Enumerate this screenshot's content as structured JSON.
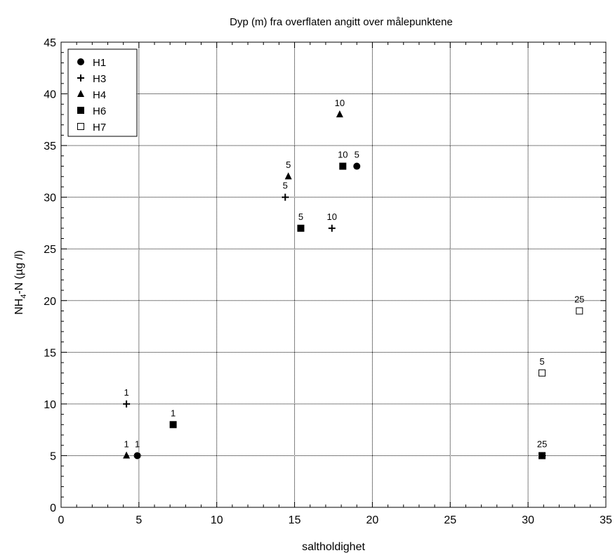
{
  "chart_data": {
    "type": "scatter",
    "title": "Dyp (m) fra overflaten angitt over målepunktene",
    "xlabel": "saltholdighet",
    "ylabel": "NH",
    "ylabel_sub": "4",
    "ylabel_tail": "-N (µg /l)",
    "xlim": [
      0,
      35
    ],
    "ylim": [
      0,
      45
    ],
    "x_ticks": [
      0,
      5,
      10,
      15,
      20,
      25,
      30,
      35
    ],
    "y_ticks": [
      0,
      5,
      10,
      15,
      20,
      25,
      30,
      35,
      40,
      45
    ],
    "grid": true,
    "legend_position": "top-left",
    "series": [
      {
        "name": "H1",
        "marker": "filled-circle",
        "points": [
          {
            "x": 4.9,
            "y": 5,
            "label": "1"
          },
          {
            "x": 19.0,
            "y": 33,
            "label": "5"
          }
        ]
      },
      {
        "name": "H3",
        "marker": "plus",
        "points": [
          {
            "x": 4.2,
            "y": 10,
            "label": "1"
          },
          {
            "x": 14.4,
            "y": 30,
            "label": "5"
          },
          {
            "x": 17.4,
            "y": 27,
            "label": "10"
          }
        ]
      },
      {
        "name": "H4",
        "marker": "filled-triangle",
        "points": [
          {
            "x": 4.2,
            "y": 5,
            "label": "1"
          },
          {
            "x": 14.6,
            "y": 32,
            "label": "5"
          },
          {
            "x": 17.9,
            "y": 38,
            "label": "10"
          }
        ]
      },
      {
        "name": "H6",
        "marker": "filled-square",
        "points": [
          {
            "x": 7.2,
            "y": 8,
            "label": "1"
          },
          {
            "x": 15.4,
            "y": 27,
            "label": "5"
          },
          {
            "x": 18.1,
            "y": 33,
            "label": "10"
          },
          {
            "x": 30.9,
            "y": 5,
            "label": "25"
          }
        ]
      },
      {
        "name": "H7",
        "marker": "open-square",
        "points": [
          {
            "x": 30.9,
            "y": 13,
            "label": "5"
          },
          {
            "x": 33.3,
            "y": 19,
            "label": "25"
          }
        ]
      }
    ]
  }
}
